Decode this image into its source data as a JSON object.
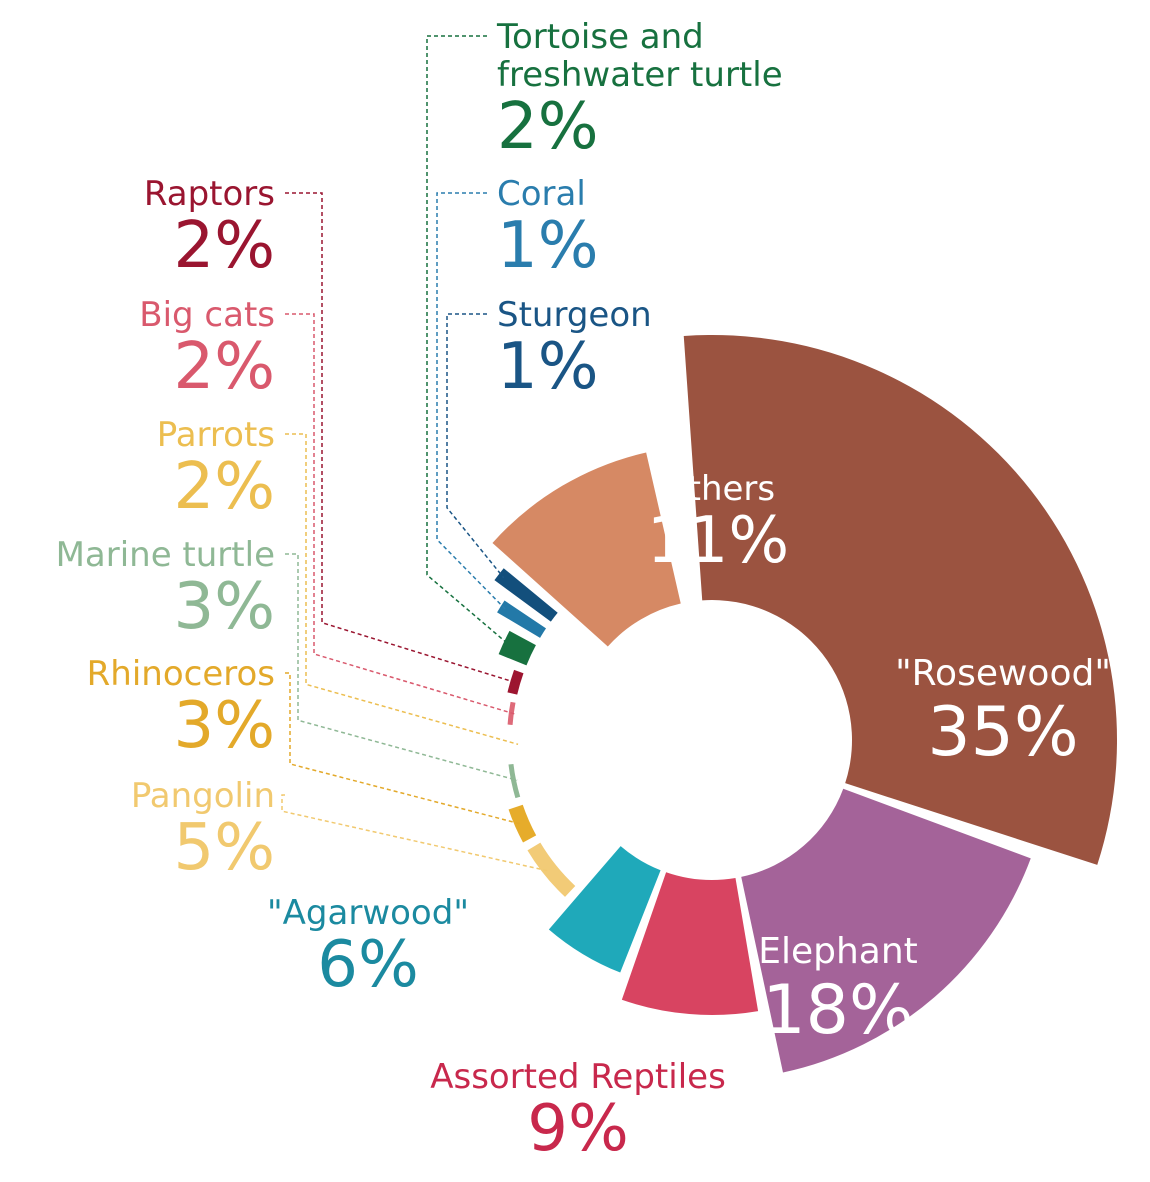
{
  "chart_data": {
    "type": "pie",
    "variant": "donut-exploded",
    "slices": [
      {
        "label": "\"Rosewood\"",
        "value_label": "35%",
        "value": 35,
        "color": "#9b5340",
        "text_color": "#ffffff"
      },
      {
        "label": "Elephant",
        "value_label": "18%",
        "value": 18,
        "color": "#a46399",
        "text_color": "#ffffff"
      },
      {
        "label": "Assorted Reptiles",
        "value_label": "9%",
        "value": 9,
        "color": "#d84461",
        "text_color": "#c8284c"
      },
      {
        "label": "\"Agarwood\"",
        "value_label": "6%",
        "value": 6,
        "color": "#1fa9ba",
        "text_color": "#1b8aa0"
      },
      {
        "label": "Pangolin",
        "value_label": "5%",
        "value": 5,
        "color": "#f2cb77",
        "text_color": "#f1c96f"
      },
      {
        "label": "Rhinoceros",
        "value_label": "3%",
        "value": 3,
        "color": "#e6ac2b",
        "text_color": "#e3a92a"
      },
      {
        "label": "Marine turtle",
        "value_label": "3%",
        "value": 3,
        "color": "#8fb895",
        "text_color": "#8fb895"
      },
      {
        "label": "Parrots",
        "value_label": "2%",
        "value": 2,
        "color": "#ecbe50",
        "text_color": "#ecbe50"
      },
      {
        "label": "Big cats",
        "value_label": "2%",
        "value": 2,
        "color": "#de6a79",
        "text_color": "#d9596d"
      },
      {
        "label": "Raptors",
        "value_label": "2%",
        "value": 2,
        "color": "#9d1530",
        "text_color": "#9a1530"
      },
      {
        "label": "Tortoise and freshwater turtle",
        "value_label": "2%",
        "value": 2,
        "color": "#17713f",
        "text_color": "#17713f"
      },
      {
        "label": "Coral",
        "value_label": "1%",
        "value": 1,
        "color": "#2379a8",
        "text_color": "#2a7dad"
      },
      {
        "label": "Sturgeon",
        "value_label": "1%",
        "value": 1,
        "color": "#134f7c",
        "text_color": "#1a5585"
      },
      {
        "label": "Others",
        "value_label": "11%",
        "value": 11,
        "color": "#d68964",
        "text_color": "#ffffff"
      }
    ]
  }
}
